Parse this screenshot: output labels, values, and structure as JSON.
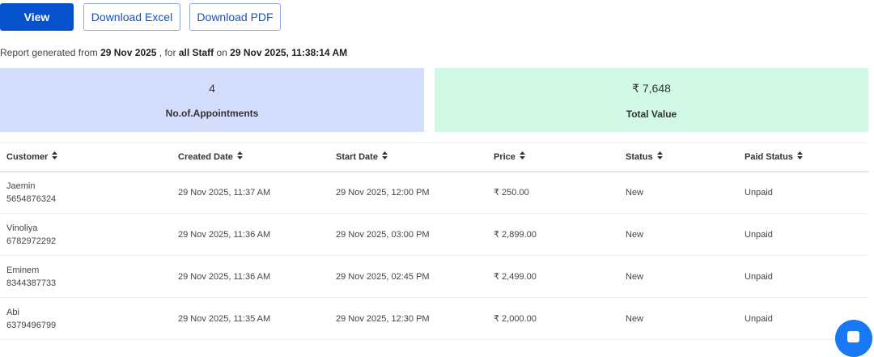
{
  "toolbar": {
    "view": "View",
    "excel": "Download Excel",
    "pdf": "Download PDF"
  },
  "info": {
    "p1": "Report generated from ",
    "from": "29 Nov 2025",
    "p2": " , for ",
    "staff": "all Staff",
    "p3": " on ",
    "on": "29 Nov 2025, 11:38:14 AM"
  },
  "summary": {
    "count": "4",
    "count_label": "No.of.Appointments",
    "total": "₹ 7,648",
    "total_label": "Total Value"
  },
  "table": {
    "headers": [
      "Customer",
      "Created Date",
      "Start Date",
      "Price",
      "Status",
      "Paid Status"
    ],
    "rows": [
      {
        "name": "Jaemin",
        "phone": "5654876324",
        "created": "29 Nov 2025, 11:37 AM",
        "start": "29 Nov 2025, 12:00 PM",
        "price": "₹ 250.00",
        "status": "New",
        "paid": "Unpaid"
      },
      {
        "name": "Vinoliya",
        "phone": "6782972292",
        "created": "29 Nov 2025, 11:36 AM",
        "start": "29 Nov 2025, 03:00 PM",
        "price": "₹ 2,899.00",
        "status": "New",
        "paid": "Unpaid"
      },
      {
        "name": "Eminem",
        "phone": "8344387733",
        "created": "29 Nov 2025, 11:36 AM",
        "start": "29 Nov 2025, 02:45 PM",
        "price": "₹ 2,499.00",
        "status": "New",
        "paid": "Unpaid"
      },
      {
        "name": "Abi",
        "phone": "6379496799",
        "created": "29 Nov 2025, 11:35 AM",
        "start": "29 Nov 2025, 12:30 PM",
        "price": "₹ 2,000.00",
        "status": "New",
        "paid": "Unpaid"
      }
    ]
  }
}
